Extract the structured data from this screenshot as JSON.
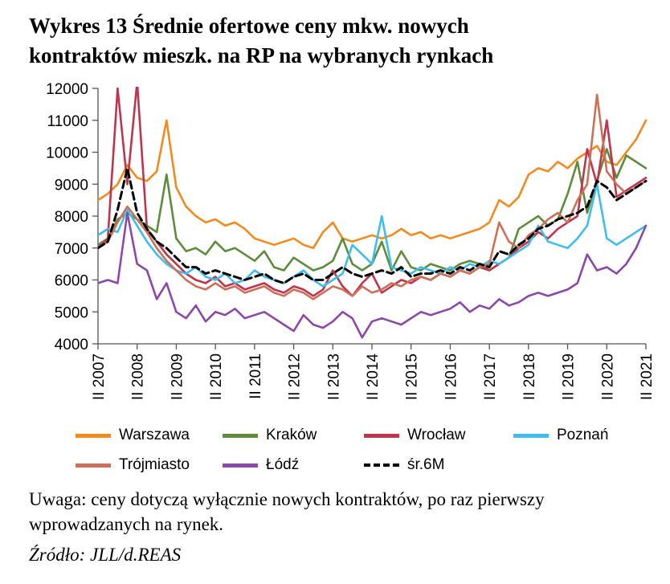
{
  "title": {
    "line1": "Wykres 13 Średnie ofertowe ceny mkw. nowych",
    "line2": "kontraktów mieszk. na RP na wybranych rynkach"
  },
  "note": "Uwaga: ceny dotyczą wyłącznie nowych kontraktów, po raz pierwszy wprowadzanych na rynek.",
  "source": "Źródło: JLL/d.REAS",
  "chart_data": {
    "type": "line",
    "title": "Średnie ofertowe ceny mkw. nowych kontraktów mieszkaniowych na RP na wybranych rynkach",
    "ylabel": "",
    "xlabel": "",
    "ylim": [
      4000,
      12000
    ],
    "y_tick_step": 1000,
    "x_tick_every": 4,
    "grid": false,
    "legend_position": "bottom",
    "categories": [
      "II 2007",
      "III 2007",
      "IV 2007",
      "I 2008",
      "II 2008",
      "III 2008",
      "IV 2008",
      "I 2009",
      "II 2009",
      "III 2009",
      "IV 2009",
      "I 2010",
      "II 2010",
      "III 2010",
      "IV 2010",
      "I 2011",
      "II 2011",
      "III 2011",
      "IV 2011",
      "I 2012",
      "II 2012",
      "III 2012",
      "IV 2012",
      "I 2013",
      "II 2013",
      "III 2013",
      "IV 2013",
      "I 2014",
      "II 2014",
      "III 2014",
      "IV 2014",
      "I 2015",
      "II 2015",
      "III 2015",
      "IV 2015",
      "I 2016",
      "II 2016",
      "III 2016",
      "IV 2016",
      "I 2017",
      "II 2017",
      "III 2017",
      "IV 2017",
      "I 2018",
      "II 2018",
      "III 2018",
      "IV 2018",
      "I 2019",
      "II 2019",
      "III 2019",
      "IV 2019",
      "I 2020",
      "II 2020",
      "III 2020",
      "IV 2020",
      "I 2021",
      "II 2021"
    ],
    "series": [
      {
        "name": "Warszawa",
        "color": "#F28B1E",
        "dash": false,
        "values": [
          8500,
          8700,
          9000,
          9600,
          9200,
          9100,
          9400,
          11000,
          8900,
          8300,
          8000,
          7800,
          7900,
          7700,
          7800,
          7600,
          7300,
          7200,
          7100,
          7200,
          7300,
          7100,
          7000,
          7500,
          7800,
          7300,
          7200,
          7300,
          7400,
          7300,
          7400,
          7600,
          7400,
          7500,
          7300,
          7400,
          7300,
          7400,
          7500,
          7600,
          7800,
          8500,
          8300,
          8600,
          9300,
          9500,
          9400,
          9700,
          9500,
          9800,
          10000,
          10200,
          9700,
          9600,
          10000,
          10400,
          11000
        ]
      },
      {
        "name": "Kraków",
        "color": "#5E8C3C",
        "dash": false,
        "values": [
          7100,
          7300,
          7900,
          8100,
          7900,
          7700,
          7500,
          9300,
          7300,
          6900,
          7000,
          6800,
          7200,
          6900,
          7000,
          6800,
          6600,
          6900,
          6400,
          6300,
          6700,
          6500,
          6300,
          6400,
          6600,
          7300,
          6500,
          6300,
          6500,
          7200,
          6300,
          6900,
          6400,
          6300,
          6500,
          6400,
          6300,
          6500,
          6600,
          6500,
          6300,
          6500,
          6700,
          7600,
          7800,
          8000,
          7700,
          7900,
          8700,
          9700,
          8100,
          9100,
          10100,
          9200,
          9900,
          9700,
          9500
        ]
      },
      {
        "name": "Wrocław",
        "color": "#C0344E",
        "dash": false,
        "values": [
          7000,
          7300,
          12000,
          9000,
          12200,
          7600,
          7200,
          6800,
          6500,
          6200,
          6000,
          5900,
          6100,
          5800,
          5900,
          5700,
          5800,
          5900,
          5700,
          5600,
          5800,
          5700,
          5500,
          5700,
          6300,
          5800,
          5500,
          5900,
          6200,
          5600,
          5800,
          6000,
          5900,
          6100,
          6000,
          6200,
          6100,
          6300,
          6200,
          6400,
          6300,
          6500,
          6700,
          7000,
          7200,
          7500,
          7300,
          7600,
          7800,
          8000,
          10100,
          9000,
          11000,
          8600,
          8800,
          9000,
          9200
        ]
      },
      {
        "name": "Poznań",
        "color": "#3FBEEE",
        "dash": false,
        "values": [
          7400,
          7600,
          7500,
          8200,
          7700,
          7200,
          6800,
          6500,
          6300,
          6200,
          6400,
          6100,
          6000,
          6200,
          5900,
          6000,
          6300,
          6100,
          6000,
          5900,
          6100,
          6300,
          6000,
          5800,
          6000,
          6200,
          7100,
          6800,
          6500,
          8000,
          6400,
          6300,
          6200,
          6400,
          6300,
          6200,
          6400,
          6300,
          6500,
          6400,
          6600,
          6500,
          6700,
          6900,
          7100,
          7700,
          7200,
          7100,
          7000,
          7300,
          7700,
          9000,
          7300,
          7100,
          7300,
          7500,
          7700
        ]
      },
      {
        "name": "Trójmiasto",
        "color": "#CC7058",
        "dash": false,
        "values": [
          7000,
          7200,
          7800,
          8300,
          7900,
          7500,
          7000,
          6600,
          6300,
          6000,
          5800,
          5700,
          5900,
          5700,
          5800,
          5600,
          5700,
          5800,
          5600,
          5500,
          5700,
          5600,
          5400,
          5600,
          5800,
          5700,
          5500,
          5800,
          5600,
          5700,
          5900,
          5800,
          6000,
          6100,
          6000,
          6200,
          6100,
          6300,
          6200,
          6400,
          6500,
          7800,
          7200,
          7000,
          7400,
          7600,
          7900,
          8100,
          7800,
          8500,
          9000,
          11800,
          9400,
          9000,
          8700,
          8900,
          9100
        ]
      },
      {
        "name": "Łódź",
        "color": "#8C48A8",
        "dash": false,
        "values": [
          5900,
          6000,
          5900,
          8100,
          6500,
          6300,
          5400,
          5900,
          5000,
          4800,
          5200,
          4700,
          5000,
          4900,
          5100,
          4800,
          4900,
          5000,
          4800,
          4600,
          4400,
          4900,
          4600,
          4500,
          4700,
          5000,
          4800,
          4200,
          4700,
          4800,
          4700,
          4600,
          4800,
          5000,
          4900,
          5000,
          5100,
          5300,
          5000,
          5200,
          5100,
          5400,
          5200,
          5300,
          5500,
          5600,
          5500,
          5600,
          5700,
          5900,
          6800,
          6300,
          6400,
          6200,
          6500,
          7000,
          7700
        ]
      },
      {
        "name": "śr.6M",
        "color": "#000000",
        "dash": true,
        "values": [
          7000,
          7200,
          8200,
          9500,
          8100,
          7600,
          7200,
          7000,
          6700,
          6400,
          6400,
          6200,
          6300,
          6200,
          6100,
          6000,
          6100,
          6200,
          6000,
          5900,
          6100,
          6200,
          6000,
          6000,
          6200,
          6400,
          6200,
          6100,
          6200,
          6300,
          6200,
          6400,
          6100,
          6200,
          6200,
          6300,
          6200,
          6400,
          6300,
          6500,
          6400,
          6900,
          6800,
          7100,
          7300,
          7600,
          7700,
          7900,
          8000,
          8100,
          8300,
          9100,
          8900,
          8500,
          8700,
          8900,
          9100
        ]
      }
    ]
  }
}
